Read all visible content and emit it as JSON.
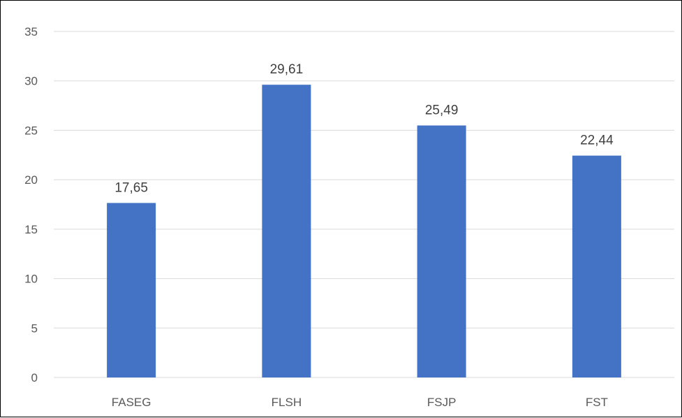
{
  "chart_data": {
    "type": "bar",
    "title": "",
    "xlabel": "",
    "ylabel": "",
    "categories": [
      "FASEG",
      "FLSH",
      "FSJP",
      "FST"
    ],
    "values": [
      17.65,
      29.61,
      25.49,
      22.44
    ],
    "value_labels": [
      "17,65",
      "29,61",
      "25,49",
      "22,44"
    ],
    "ylim": [
      0,
      35
    ],
    "y_ticks": [
      0,
      5,
      10,
      15,
      20,
      25,
      30,
      35
    ],
    "grid": true,
    "legend": "none",
    "bar_color": "#4472C4",
    "grid_color": "#D9D9D9"
  }
}
